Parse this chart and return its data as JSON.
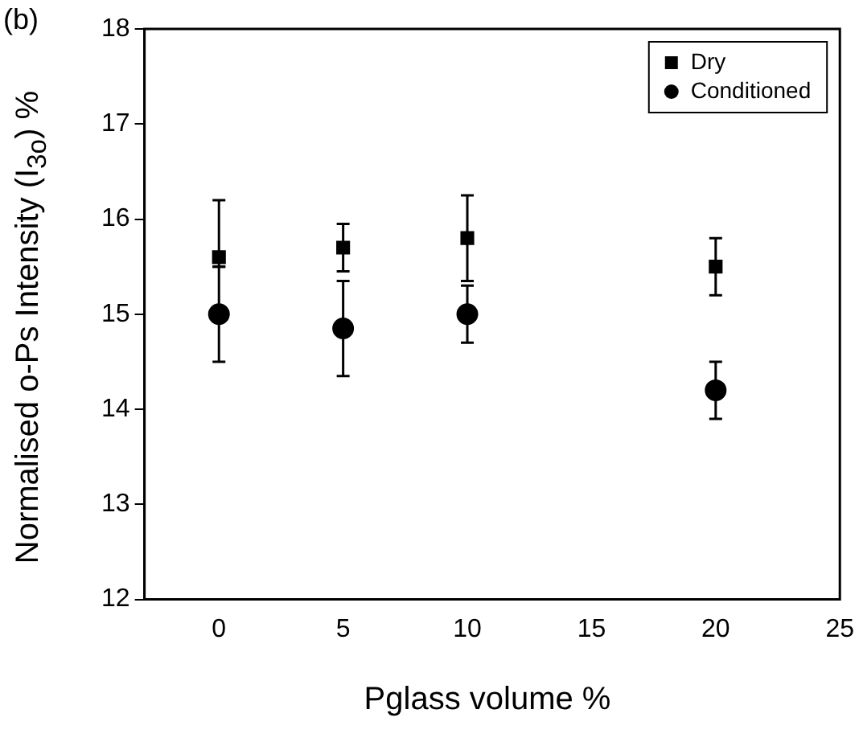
{
  "chart_data": {
    "type": "scatter",
    "xlabel": "Pglass volume %",
    "ylabel": "Normalised o-Ps Intensity (I$_{3o}$) %",
    "annotations": [
      "(b)"
    ],
    "xlim": [
      -3,
      25
    ],
    "xticks": [
      0,
      5,
      10,
      15,
      20,
      25
    ],
    "ylim": [
      12,
      18
    ],
    "yticks": [
      12,
      13,
      14,
      15,
      16,
      17,
      18
    ],
    "grid": false,
    "legend": "top right",
    "series": [
      {
        "name": "Dry",
        "color": "#000000",
        "marker": "square",
        "x": [
          0,
          5,
          10,
          20
        ],
        "values": [
          15.6,
          15.7,
          15.8,
          15.5
        ],
        "errors": [
          [
            15.5,
            16.2
          ],
          0.25,
          0.45,
          0.3
        ]
      },
      {
        "name": "Conditioned",
        "color": "#000000",
        "marker": "circle",
        "x": [
          0,
          5,
          10,
          20
        ],
        "values": [
          15.0,
          14.85,
          15.0,
          14.2
        ],
        "errors": [
          0.5,
          0.5,
          0.3,
          0.3
        ]
      }
    ]
  }
}
